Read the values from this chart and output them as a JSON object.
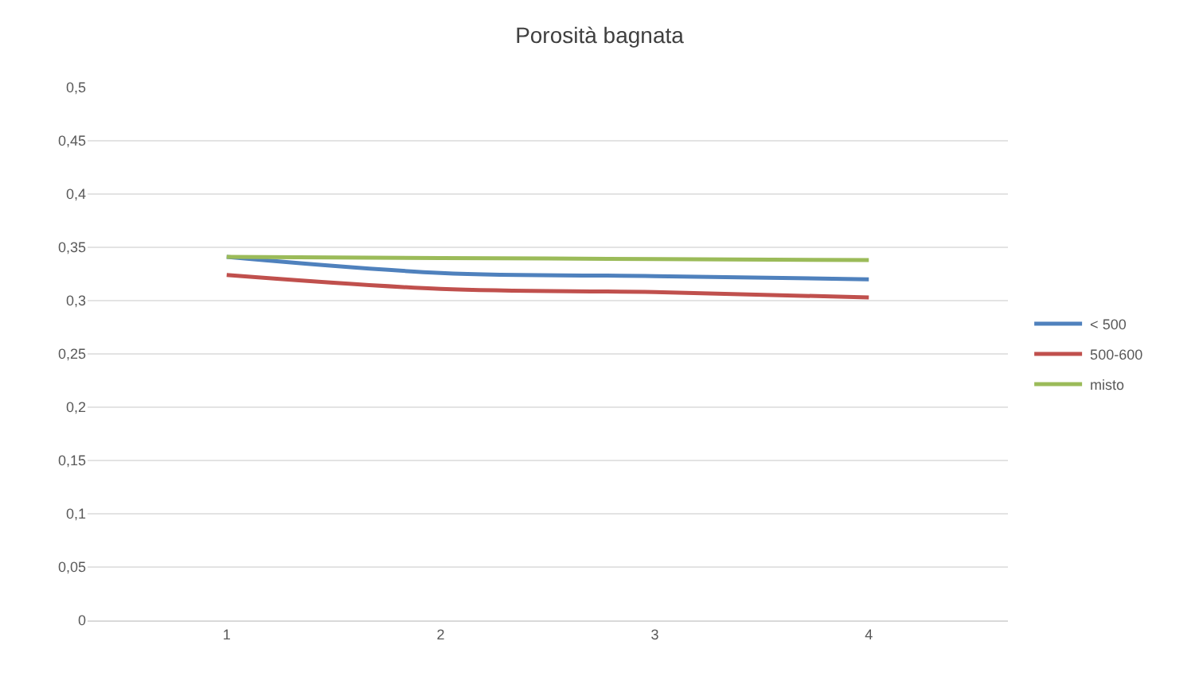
{
  "chart_data": {
    "type": "line",
    "title": "Porosità bagnata",
    "categories": [
      "1",
      "2",
      "3",
      "4"
    ],
    "series": [
      {
        "name": "< 500",
        "color": "#4f81bd",
        "values": [
          0.341,
          0.326,
          0.323,
          0.32
        ]
      },
      {
        "name": "500-600",
        "color": "#c0504d",
        "values": [
          0.324,
          0.311,
          0.308,
          0.303
        ]
      },
      {
        "name": "misto",
        "color": "#9bbb59",
        "values": [
          0.341,
          0.34,
          0.339,
          0.338
        ]
      }
    ],
    "ylim": [
      0,
      0.5
    ],
    "yticks": [
      {
        "value": 0,
        "label": "0"
      },
      {
        "value": 0.05,
        "label": "0,05"
      },
      {
        "value": 0.1,
        "label": "0,1"
      },
      {
        "value": 0.15,
        "label": "0,15"
      },
      {
        "value": 0.2,
        "label": "0,2"
      },
      {
        "value": 0.25,
        "label": "0,25"
      },
      {
        "value": 0.3,
        "label": "0,3"
      },
      {
        "value": 0.35,
        "label": "0,35"
      },
      {
        "value": 0.4,
        "label": "0,4"
      },
      {
        "value": 0.45,
        "label": "0,45"
      },
      {
        "value": 0.5,
        "label": "0,5"
      }
    ],
    "grid": "y",
    "legend": "right",
    "marker": "none",
    "line_style": "solid"
  }
}
